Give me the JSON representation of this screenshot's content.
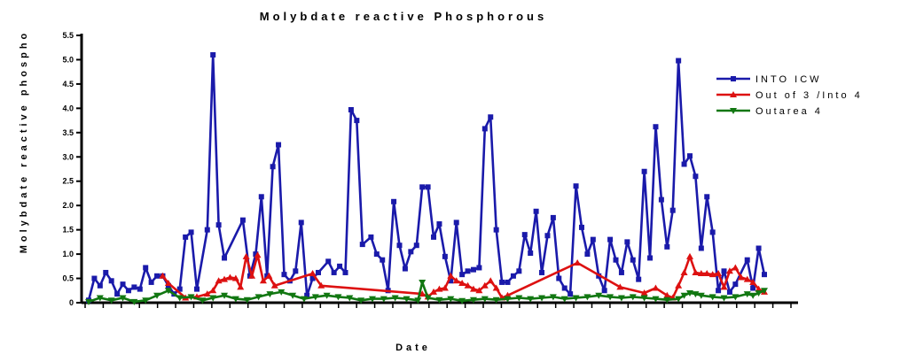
{
  "chart_data": {
    "type": "line",
    "title": "Molybdate reactive Phosphorous",
    "xlabel": "Date",
    "ylabel": "Molybdate reactive phospho",
    "ylim": [
      0,
      5.5
    ],
    "y_ticks": [
      "0",
      "0.5",
      "1.0",
      "1.5",
      "2.0",
      "2.5",
      "3.0",
      "3.5",
      "4.0",
      "4.5",
      "5.0",
      "5.5"
    ],
    "x_tick_count": 40,
    "grid": false,
    "legend": "right",
    "series": [
      {
        "name": "INTO ICW",
        "color": "#1a1aaa",
        "marker": "square",
        "points": [
          [
            0,
            0.05
          ],
          [
            1.2,
            0.5
          ],
          [
            2.4,
            0.35
          ],
          [
            3.6,
            0.62
          ],
          [
            4.8,
            0.45
          ],
          [
            6,
            0.18
          ],
          [
            7.2,
            0.38
          ],
          [
            8.4,
            0.25
          ],
          [
            9.6,
            0.32
          ],
          [
            10.8,
            0.28
          ],
          [
            12,
            0.72
          ],
          [
            13.2,
            0.42
          ],
          [
            14.4,
            0.55
          ],
          [
            15.6,
            0.55
          ],
          [
            16.8,
            0.35
          ],
          [
            18,
            0.18
          ],
          [
            19.2,
            0.28
          ],
          [
            20.4,
            1.35
          ],
          [
            21.6,
            1.45
          ],
          [
            22.8,
            0.28
          ],
          [
            25,
            1.5
          ],
          [
            26.2,
            5.1
          ],
          [
            27.4,
            1.6
          ],
          [
            28.6,
            0.92
          ],
          [
            32.5,
            1.7
          ],
          [
            34,
            0.55
          ],
          [
            35.2,
            1.0
          ],
          [
            36.4,
            2.18
          ],
          [
            37.6,
            0.55
          ],
          [
            38.8,
            2.8
          ],
          [
            40,
            3.25
          ],
          [
            41.2,
            0.58
          ],
          [
            42.4,
            0.45
          ],
          [
            43.6,
            0.65
          ],
          [
            44.8,
            1.65
          ],
          [
            46,
            0.15
          ],
          [
            47.2,
            0.5
          ],
          [
            48.4,
            0.62
          ],
          [
            50.5,
            0.85
          ],
          [
            51.7,
            0.62
          ],
          [
            52.9,
            0.75
          ],
          [
            54.1,
            0.62
          ],
          [
            55.3,
            3.97
          ],
          [
            56.5,
            3.75
          ],
          [
            57.7,
            1.2
          ],
          [
            59.5,
            1.35
          ],
          [
            60.7,
            1.0
          ],
          [
            61.9,
            0.88
          ],
          [
            63.1,
            0.25
          ],
          [
            64.3,
            2.08
          ],
          [
            65.5,
            1.18
          ],
          [
            66.7,
            0.7
          ],
          [
            67.9,
            1.05
          ],
          [
            69.1,
            1.18
          ],
          [
            70.3,
            2.38
          ],
          [
            71.5,
            2.38
          ],
          [
            72.7,
            1.35
          ],
          [
            73.9,
            1.62
          ],
          [
            75.1,
            0.95
          ],
          [
            76.3,
            0.45
          ],
          [
            77.5,
            1.65
          ],
          [
            78.7,
            0.58
          ],
          [
            79.9,
            0.65
          ],
          [
            81.1,
            0.68
          ],
          [
            82.3,
            0.72
          ],
          [
            83.5,
            3.58
          ],
          [
            84.7,
            3.82
          ],
          [
            85.9,
            1.5
          ],
          [
            87.1,
            0.42
          ],
          [
            88.3,
            0.42
          ],
          [
            89.5,
            0.55
          ],
          [
            90.7,
            0.65
          ],
          [
            91.9,
            1.4
          ],
          [
            93.1,
            1.02
          ],
          [
            94.3,
            1.88
          ],
          [
            95.5,
            0.62
          ],
          [
            96.7,
            1.38
          ],
          [
            97.9,
            1.75
          ],
          [
            99.1,
            0.5
          ],
          [
            100.3,
            0.3
          ],
          [
            101.5,
            0.18
          ],
          [
            102.7,
            2.4
          ],
          [
            103.9,
            1.55
          ],
          [
            105.1,
            1.0
          ],
          [
            106.3,
            1.3
          ],
          [
            107.5,
            0.55
          ],
          [
            108.7,
            0.25
          ],
          [
            109.9,
            1.3
          ],
          [
            111.1,
            0.88
          ],
          [
            112.3,
            0.62
          ],
          [
            113.5,
            1.25
          ],
          [
            114.7,
            0.88
          ],
          [
            115.9,
            0.48
          ],
          [
            117.1,
            2.7
          ],
          [
            118.3,
            0.92
          ],
          [
            119.5,
            3.62
          ],
          [
            120.7,
            2.12
          ],
          [
            121.9,
            1.15
          ],
          [
            123.1,
            1.9
          ],
          [
            124.3,
            4.98
          ],
          [
            125.5,
            2.85
          ],
          [
            126.7,
            3.02
          ],
          [
            127.9,
            2.6
          ],
          [
            129.1,
            1.12
          ],
          [
            130.3,
            2.18
          ],
          [
            131.5,
            1.45
          ],
          [
            132.7,
            0.25
          ],
          [
            133.9,
            0.65
          ],
          [
            135.1,
            0.22
          ],
          [
            136.3,
            0.38
          ],
          [
            138.8,
            0.88
          ],
          [
            140,
            0.3
          ],
          [
            141.2,
            1.12
          ],
          [
            142.4,
            0.58
          ]
        ]
      },
      {
        "name": "Out of 3 /Into 4",
        "color": "#dd1111",
        "marker": "triangle-up",
        "points": [
          [
            15.6,
            0.55
          ],
          [
            16.8,
            0.4
          ],
          [
            20.4,
            0.1
          ],
          [
            22.8,
            0.12
          ],
          [
            25,
            0.18
          ],
          [
            26.2,
            0.25
          ],
          [
            27.4,
            0.45
          ],
          [
            28.6,
            0.48
          ],
          [
            29.8,
            0.52
          ],
          [
            31,
            0.5
          ],
          [
            32,
            0.32
          ],
          [
            33.2,
            0.95
          ],
          [
            34.4,
            0.55
          ],
          [
            35.6,
            0.98
          ],
          [
            36.8,
            0.45
          ],
          [
            38,
            0.55
          ],
          [
            39.2,
            0.35
          ],
          [
            47.2,
            0.6
          ],
          [
            49,
            0.35
          ],
          [
            70.3,
            0.18
          ],
          [
            71.5,
            0.12
          ],
          [
            72.7,
            0.22
          ],
          [
            73.9,
            0.28
          ],
          [
            75.1,
            0.3
          ],
          [
            76.3,
            0.55
          ],
          [
            77.5,
            0.45
          ],
          [
            78.7,
            0.4
          ],
          [
            79.9,
            0.35
          ],
          [
            81.1,
            0.28
          ],
          [
            82.3,
            0.25
          ],
          [
            83.5,
            0.35
          ],
          [
            84.7,
            0.45
          ],
          [
            85.9,
            0.3
          ],
          [
            87.1,
            0.1
          ],
          [
            88.3,
            0.15
          ],
          [
            103,
            0.82
          ],
          [
            112,
            0.32
          ],
          [
            117.1,
            0.2
          ],
          [
            119.5,
            0.3
          ],
          [
            121.9,
            0.15
          ],
          [
            123.1,
            0.1
          ],
          [
            124.3,
            0.35
          ],
          [
            125.5,
            0.62
          ],
          [
            126.7,
            0.95
          ],
          [
            127.9,
            0.62
          ],
          [
            129.1,
            0.6
          ],
          [
            130.3,
            0.6
          ],
          [
            131.5,
            0.58
          ],
          [
            132.7,
            0.6
          ],
          [
            133.9,
            0.32
          ],
          [
            135.1,
            0.65
          ],
          [
            136.3,
            0.72
          ],
          [
            137.5,
            0.52
          ],
          [
            138.8,
            0.48
          ],
          [
            140,
            0.42
          ],
          [
            141.2,
            0.28
          ],
          [
            142.4,
            0.22
          ]
        ]
      },
      {
        "name": "Outarea 4",
        "color": "#117711",
        "marker": "triangle-down",
        "points": [
          [
            0,
            0.02
          ],
          [
            2.4,
            0.1
          ],
          [
            4.8,
            0.05
          ],
          [
            7.2,
            0.1
          ],
          [
            9.6,
            0.02
          ],
          [
            12,
            0.05
          ],
          [
            14.4,
            0.15
          ],
          [
            16.8,
            0.25
          ],
          [
            19.2,
            0.1
          ],
          [
            21.6,
            0.12
          ],
          [
            24,
            0.05
          ],
          [
            26.2,
            0.1
          ],
          [
            28.6,
            0.15
          ],
          [
            31,
            0.08
          ],
          [
            33.4,
            0.06
          ],
          [
            35.8,
            0.12
          ],
          [
            38.2,
            0.18
          ],
          [
            40.6,
            0.22
          ],
          [
            43,
            0.15
          ],
          [
            45.4,
            0.08
          ],
          [
            47.8,
            0.12
          ],
          [
            50.2,
            0.15
          ],
          [
            52.6,
            0.12
          ],
          [
            55,
            0.1
          ],
          [
            57.4,
            0.05
          ],
          [
            59.8,
            0.08
          ],
          [
            62.2,
            0.08
          ],
          [
            64.6,
            0.1
          ],
          [
            67,
            0.08
          ],
          [
            69.4,
            0.05
          ],
          [
            70.3,
            0.42
          ],
          [
            71.5,
            0.1
          ],
          [
            73.9,
            0.06
          ],
          [
            76.3,
            0.08
          ],
          [
            78.7,
            0.04
          ],
          [
            81.1,
            0.06
          ],
          [
            83.5,
            0.08
          ],
          [
            85.9,
            0.06
          ],
          [
            88.3,
            0.08
          ],
          [
            90.7,
            0.1
          ],
          [
            93.1,
            0.08
          ],
          [
            95.5,
            0.1
          ],
          [
            97.9,
            0.12
          ],
          [
            100.3,
            0.08
          ],
          [
            102.7,
            0.1
          ],
          [
            105.1,
            0.12
          ],
          [
            107.5,
            0.15
          ],
          [
            109.9,
            0.12
          ],
          [
            112.3,
            0.1
          ],
          [
            114.7,
            0.12
          ],
          [
            117.1,
            0.1
          ],
          [
            119.5,
            0.08
          ],
          [
            121.9,
            0.06
          ],
          [
            124.3,
            0.08
          ],
          [
            125.5,
            0.15
          ],
          [
            126.7,
            0.2
          ],
          [
            127.9,
            0.18
          ],
          [
            129.1,
            0.15
          ],
          [
            131.5,
            0.12
          ],
          [
            133.9,
            0.1
          ],
          [
            136.3,
            0.12
          ],
          [
            138.8,
            0.18
          ],
          [
            140,
            0.15
          ],
          [
            141.2,
            0.2
          ],
          [
            142.4,
            0.25
          ]
        ]
      }
    ]
  }
}
